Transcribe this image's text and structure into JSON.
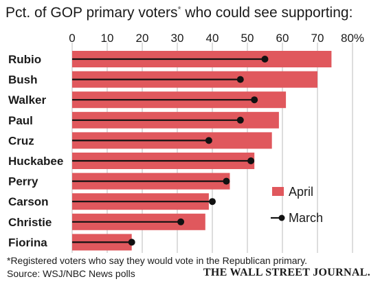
{
  "chart_data": {
    "type": "bar",
    "title": "Pct. of GOP primary voters",
    "title_asterisk": "*",
    "title_rest": " who could see supporting:",
    "x_ticks": [
      "0",
      "10",
      "20",
      "30",
      "40",
      "50",
      "60",
      "70",
      "80%"
    ],
    "xlim": [
      0,
      80
    ],
    "grid": true,
    "categories": [
      "Rubio",
      "Bush",
      "Walker",
      "Paul",
      "Cruz",
      "Huckabee",
      "Perry",
      "Carson",
      "Christie",
      "Fiorina"
    ],
    "series": [
      {
        "name": "April",
        "mark": "bar",
        "values": [
          74,
          70,
          61,
          59,
          57,
          52,
          45,
          39,
          38,
          17
        ]
      },
      {
        "name": "March",
        "mark": "lollipop",
        "values": [
          55,
          48,
          52,
          48,
          39,
          51,
          44,
          40,
          31,
          17
        ]
      }
    ],
    "legend": {
      "position": "right",
      "items": [
        "April",
        "March"
      ]
    },
    "colors": {
      "April": "#e0585d",
      "March": "#111111",
      "grid": "#bbbbbb"
    }
  },
  "footnote": "*Registered voters who say they would vote in the Republican primary.",
  "source": "Source: WSJ/NBC News polls",
  "publisher": "THE WALL STREET JOURNAL."
}
